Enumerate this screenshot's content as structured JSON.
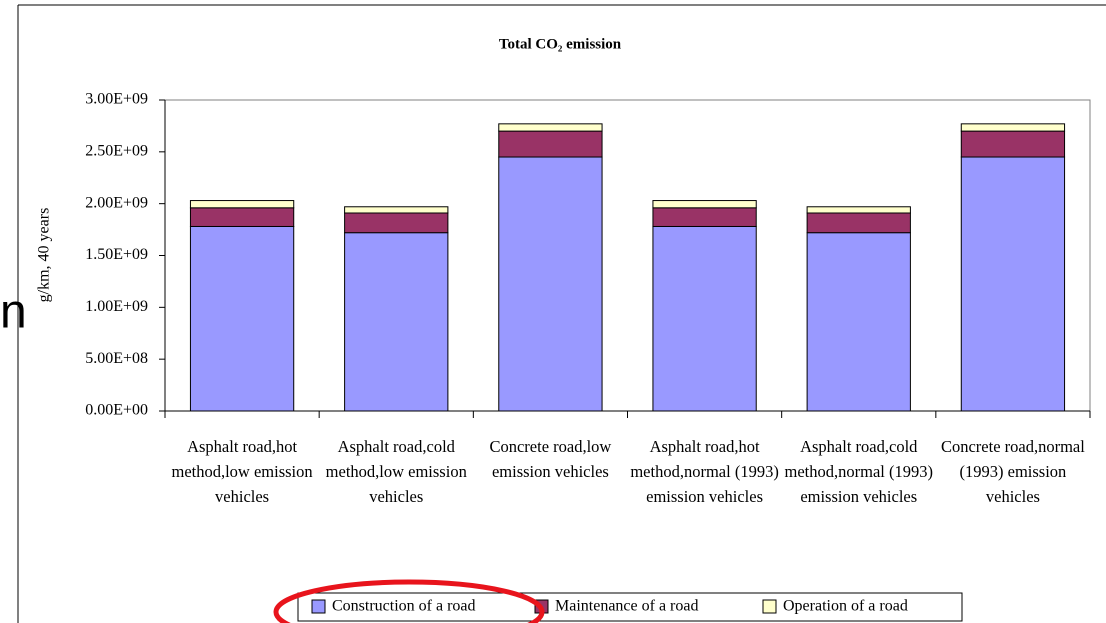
{
  "fragment_text": "n",
  "chart_data": {
    "type": "stacked_bar",
    "title": "Total CO₂ emission",
    "y_label": "g/km, 40 years",
    "categories": [
      "Asphalt road,hot method,low emission vehicles",
      "Asphalt road,cold method,low emission vehicles",
      "Concrete road,low emission vehicles",
      "Asphalt road,hot method,normal (1993) emission vehicles",
      "Asphalt road,cold method,normal (1993) emission vehicles",
      "Concrete road,normal (1993) emission vehicles"
    ],
    "series": [
      {
        "name": "Construction of a road",
        "color": "#9999ff",
        "values": [
          1780000000,
          1720000000,
          2450000000,
          1780000000,
          1720000000,
          2450000000
        ]
      },
      {
        "name": "Maintenance of a road",
        "color": "#993366",
        "values": [
          180000000,
          190000000,
          250000000,
          180000000,
          190000000,
          250000000
        ]
      },
      {
        "name": "Operation of a road",
        "color": "#ffffcc",
        "values": [
          70000000,
          60000000,
          70000000,
          70000000,
          60000000,
          70000000
        ]
      }
    ],
    "ylim": [
      0,
      3000000000
    ],
    "yticks": [
      {
        "value": 0,
        "label": "0.00E+00"
      },
      {
        "value": 500000000,
        "label": "5.00E+08"
      },
      {
        "value": 1000000000,
        "label": "1.00E+09"
      },
      {
        "value": 1500000000,
        "label": "1.50E+09"
      },
      {
        "value": 2000000000,
        "label": "2.00E+09"
      },
      {
        "value": 2500000000,
        "label": "2.50E+09"
      },
      {
        "value": 3000000000,
        "label": "3.00E+09"
      }
    ],
    "legend": "bottom"
  }
}
